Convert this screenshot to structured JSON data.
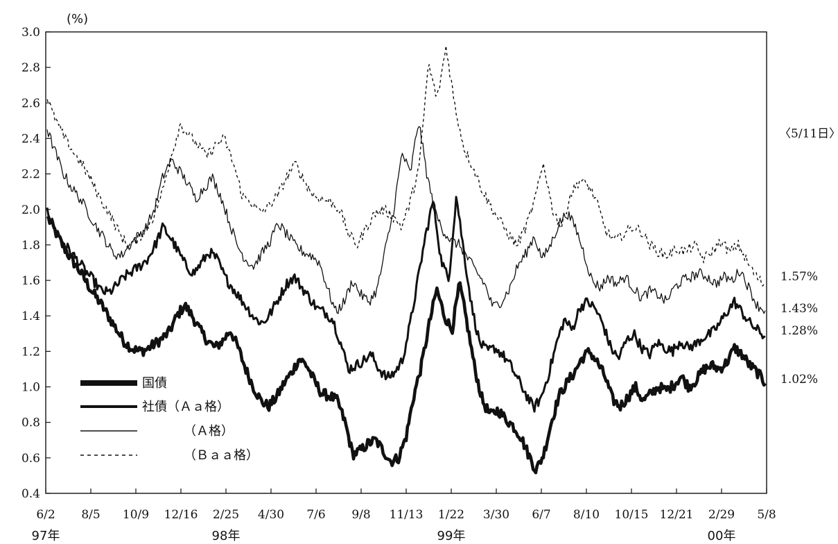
{
  "chart_data": {
    "type": "line",
    "unit_label": "(%)",
    "ylim": [
      0.4,
      3.0
    ],
    "y_ticks": [
      "0.4",
      "0.6",
      "0.8",
      "1.0",
      "1.2",
      "1.4",
      "1.6",
      "1.8",
      "2.0",
      "2.2",
      "2.4",
      "2.6",
      "2.8",
      "3.0"
    ],
    "x_ticks": [
      "6/2",
      "8/5",
      "10/9",
      "12/16",
      "2/25",
      "4/30",
      "7/6",
      "9/8",
      "11/13",
      "1/22",
      "3/30",
      "6/7",
      "8/10",
      "10/15",
      "12/21",
      "2/29",
      "5/8"
    ],
    "year_labels": [
      {
        "label": "97年",
        "at_tick": 0
      },
      {
        "label": "98年",
        "at_tick": 4
      },
      {
        "label": "99年",
        "at_tick": 9
      },
      {
        "label": "00年",
        "at_tick": 15
      }
    ],
    "end_date_label": "〈5/11日〉",
    "grid": false,
    "legend_position": "bottom-left",
    "series": [
      {
        "name": "国債",
        "style": "heavy",
        "end_label": "1.02%",
        "values": [
          1.96,
          1.88,
          1.8,
          1.73,
          1.67,
          1.6,
          1.53,
          1.47,
          1.4,
          1.33,
          1.26,
          1.22,
          1.2,
          1.21,
          1.24,
          1.27,
          1.31,
          1.4,
          1.46,
          1.4,
          1.32,
          1.26,
          1.22,
          1.26,
          1.32,
          1.22,
          1.1,
          1.0,
          0.92,
          0.89,
          0.94,
          1.02,
          1.08,
          1.16,
          1.12,
          1.03,
          0.96,
          0.95,
          0.92,
          0.8,
          0.62,
          0.64,
          0.68,
          0.7,
          0.64,
          0.58,
          0.6,
          0.72,
          0.95,
          1.12,
          1.35,
          1.55,
          1.4,
          1.32,
          1.58,
          1.35,
          1.1,
          0.92,
          0.84,
          0.87,
          0.82,
          0.78,
          0.72,
          0.62,
          0.53,
          0.62,
          0.8,
          0.95,
          1.02,
          1.08,
          1.16,
          1.2,
          1.14,
          1.06,
          0.93,
          0.89,
          0.94,
          1.0,
          0.92,
          0.96,
          1.0,
          0.98,
          1.01,
          1.06,
          1.0,
          1.04,
          1.1,
          1.12,
          1.1,
          1.14,
          1.22,
          1.18,
          1.12,
          1.08,
          1.02
        ]
      },
      {
        "name": "社債（Ａａ格）",
        "style": "bold",
        "end_label": "1.28%",
        "values": [
          2.01,
          1.88,
          1.82,
          1.76,
          1.71,
          1.65,
          1.6,
          1.54,
          1.53,
          1.57,
          1.62,
          1.65,
          1.68,
          1.72,
          1.8,
          1.9,
          1.84,
          1.76,
          1.68,
          1.64,
          1.7,
          1.76,
          1.72,
          1.62,
          1.56,
          1.5,
          1.44,
          1.38,
          1.36,
          1.42,
          1.5,
          1.58,
          1.62,
          1.56,
          1.5,
          1.44,
          1.42,
          1.38,
          1.25,
          1.1,
          1.12,
          1.15,
          1.18,
          1.1,
          1.05,
          1.08,
          1.15,
          1.35,
          1.6,
          1.85,
          2.05,
          1.72,
          1.6,
          2.08,
          1.75,
          1.45,
          1.25,
          1.2,
          1.22,
          1.18,
          1.12,
          1.04,
          0.96,
          0.88,
          0.94,
          1.08,
          1.25,
          1.38,
          1.32,
          1.45,
          1.48,
          1.44,
          1.35,
          1.22,
          1.16,
          1.26,
          1.3,
          1.22,
          1.18,
          1.25,
          1.22,
          1.2,
          1.26,
          1.22,
          1.24,
          1.28,
          1.3,
          1.35,
          1.42,
          1.48,
          1.42,
          1.36,
          1.32,
          1.28
        ]
      },
      {
        "name": "（Ａ格）",
        "style": "thin",
        "end_label": "1.43%",
        "values": [
          2.45,
          2.32,
          2.2,
          2.12,
          2.06,
          1.98,
          1.9,
          1.83,
          1.75,
          1.74,
          1.8,
          1.85,
          1.9,
          2.0,
          2.18,
          2.28,
          2.22,
          2.15,
          2.06,
          2.12,
          2.18,
          2.08,
          1.94,
          1.8,
          1.72,
          1.68,
          1.75,
          1.82,
          1.92,
          1.86,
          1.8,
          1.76,
          1.74,
          1.7,
          1.55,
          1.42,
          1.48,
          1.6,
          1.52,
          1.48,
          1.55,
          1.78,
          2.0,
          2.32,
          2.2,
          2.5,
          2.2,
          1.98,
          1.88,
          1.82,
          1.8,
          1.72,
          1.65,
          1.58,
          1.45,
          1.48,
          1.55,
          1.68,
          1.75,
          1.85,
          1.72,
          1.8,
          1.92,
          1.98,
          1.9,
          1.76,
          1.6,
          1.56,
          1.62,
          1.58,
          1.62,
          1.56,
          1.5,
          1.54,
          1.52,
          1.48,
          1.56,
          1.6,
          1.62,
          1.64,
          1.62,
          1.58,
          1.62,
          1.6,
          1.66,
          1.56,
          1.46,
          1.43
        ]
      },
      {
        "name": "（Ｂａａ格）",
        "style": "dashed",
        "end_label": "1.57%",
        "values": [
          2.62,
          2.5,
          2.4,
          2.32,
          2.25,
          2.16,
          2.06,
          1.98,
          1.88,
          1.8,
          1.82,
          1.88,
          1.96,
          2.1,
          2.3,
          2.48,
          2.42,
          2.36,
          2.3,
          2.36,
          2.4,
          2.26,
          2.08,
          2.04,
          1.98,
          2.02,
          2.08,
          2.18,
          2.26,
          2.16,
          2.08,
          2.06,
          2.04,
          2.0,
          1.86,
          1.8,
          1.9,
          1.98,
          2.0,
          1.96,
          1.9,
          2.05,
          2.25,
          2.82,
          2.62,
          2.92,
          2.58,
          2.35,
          2.24,
          2.12,
          2.02,
          1.94,
          1.86,
          1.8,
          1.9,
          2.05,
          2.26,
          2.0,
          1.9,
          2.08,
          2.16,
          2.14,
          2.04,
          1.88,
          1.82,
          1.86,
          1.9,
          1.88,
          1.8,
          1.76,
          1.74,
          1.78,
          1.76,
          1.8,
          1.72,
          1.76,
          1.82,
          1.76,
          1.8,
          1.7,
          1.62,
          1.57
        ]
      }
    ]
  }
}
